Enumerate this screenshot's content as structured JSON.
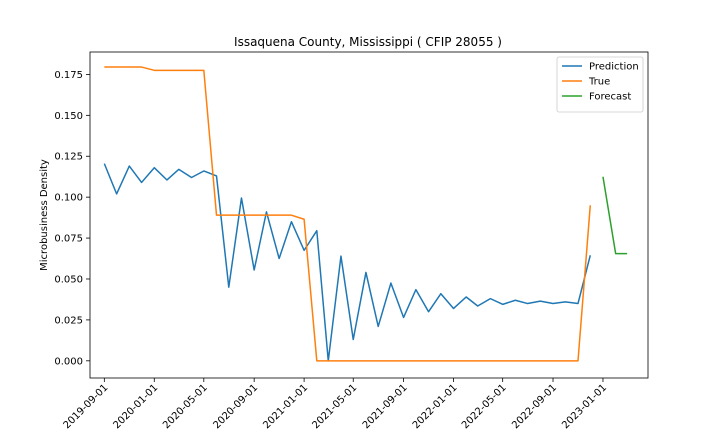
{
  "chart_data": {
    "type": "line",
    "title": "Issaquena County, Mississippi ( CFIP 28055 )",
    "xlabel": "",
    "ylabel": "Microbusiness Density",
    "ylim": [
      -0.0105,
      0.1887
    ],
    "xlim": [
      "2019-07-28",
      "2023-04-21"
    ],
    "x_ticks": [
      "2019-09-01",
      "2020-01-01",
      "2020-05-01",
      "2020-09-01",
      "2021-01-01",
      "2021-05-01",
      "2021-09-01",
      "2022-01-01",
      "2022-05-01",
      "2022-09-01",
      "2023-01-01"
    ],
    "y_ticks": [
      "0.000",
      "0.025",
      "0.050",
      "0.075",
      "0.100",
      "0.125",
      "0.150",
      "0.175"
    ],
    "legend_position": "top-right",
    "grid": false,
    "series": [
      {
        "name": "Prediction",
        "color": "#1f77b4",
        "x": [
          "2019-09-01",
          "2019-10-01",
          "2019-11-01",
          "2019-12-01",
          "2020-01-01",
          "2020-02-01",
          "2020-03-01",
          "2020-04-01",
          "2020-05-01",
          "2020-06-01",
          "2020-07-01",
          "2020-08-01",
          "2020-09-01",
          "2020-10-01",
          "2020-11-01",
          "2020-12-01",
          "2021-01-01",
          "2021-02-01",
          "2021-03-01",
          "2021-04-01",
          "2021-05-01",
          "2021-06-01",
          "2021-07-01",
          "2021-08-01",
          "2021-09-01",
          "2021-10-01",
          "2021-11-01",
          "2021-12-01",
          "2022-01-01",
          "2022-02-01",
          "2022-03-01",
          "2022-04-01",
          "2022-05-01",
          "2022-06-01",
          "2022-07-01",
          "2022-08-01",
          "2022-09-01",
          "2022-10-01",
          "2022-11-01",
          "2022-12-01"
        ],
        "values": [
          0.1205,
          0.102,
          0.119,
          0.109,
          0.118,
          0.1105,
          0.117,
          0.112,
          0.116,
          0.113,
          0.045,
          0.0995,
          0.0555,
          0.091,
          0.0625,
          0.085,
          0.0675,
          0.0795,
          0.0,
          0.064,
          0.013,
          0.054,
          0.021,
          0.0475,
          0.0265,
          0.0435,
          0.03,
          0.041,
          0.032,
          0.039,
          0.0335,
          0.038,
          0.0345,
          0.037,
          0.035,
          0.0365,
          0.035,
          0.036,
          0.035,
          0.0645
        ]
      },
      {
        "name": "True",
        "color": "#ff7f0e",
        "x": [
          "2019-09-01",
          "2019-10-01",
          "2019-11-01",
          "2019-12-01",
          "2020-01-01",
          "2020-02-01",
          "2020-03-01",
          "2020-04-01",
          "2020-05-01",
          "2020-06-01",
          "2020-07-01",
          "2020-08-01",
          "2020-09-01",
          "2020-10-01",
          "2020-11-01",
          "2020-12-01",
          "2021-01-01",
          "2021-02-01",
          "2021-03-01",
          "2021-04-01",
          "2021-05-01",
          "2021-06-01",
          "2021-07-01",
          "2021-08-01",
          "2021-09-01",
          "2021-10-01",
          "2021-11-01",
          "2021-12-01",
          "2022-01-01",
          "2022-02-01",
          "2022-03-01",
          "2022-04-01",
          "2022-05-01",
          "2022-06-01",
          "2022-07-01",
          "2022-08-01",
          "2022-09-01",
          "2022-10-01",
          "2022-11-01",
          "2022-12-01"
        ],
        "values": [
          0.1795,
          0.1795,
          0.1795,
          0.1795,
          0.1775,
          0.1775,
          0.1775,
          0.1775,
          0.1775,
          0.089,
          0.089,
          0.089,
          0.089,
          0.089,
          0.089,
          0.089,
          0.0865,
          0.0,
          0.0,
          0.0,
          0.0,
          0.0,
          0.0,
          0.0,
          0.0,
          0.0,
          0.0,
          0.0,
          0.0,
          0.0,
          0.0,
          0.0,
          0.0,
          0.0,
          0.0,
          0.0,
          0.0,
          0.0,
          0.0,
          0.095
        ]
      },
      {
        "name": "Forecast",
        "color": "#2ca02c",
        "x": [
          "2023-01-01",
          "2023-02-01",
          "2023-03-01"
        ],
        "values": [
          0.1125,
          0.0655,
          0.0655
        ]
      }
    ]
  }
}
